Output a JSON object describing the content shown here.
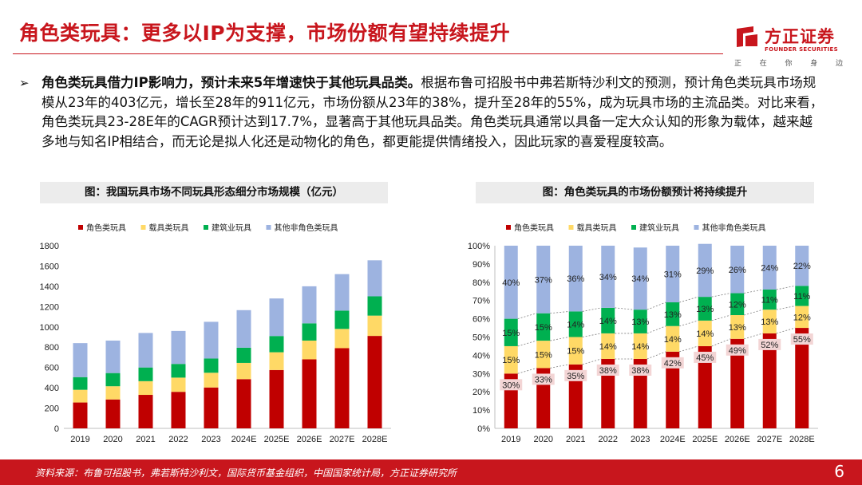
{
  "title": "角色类玩具：更多以IP为支撑，市场份额有望持续提升",
  "logo": {
    "name_cn": "方正证券",
    "name_en": "FOUNDER SECURITIES",
    "slogan": [
      "正",
      "在",
      "你",
      "身",
      "边"
    ]
  },
  "body": {
    "lead": "角色类玩具借力IP影响力，预计未来5年增速快于其他玩具品类。",
    "text": "根据布鲁可招股书中弗若斯特沙利文的预测，预计角色类玩具市场规模从23年的403亿元，增长至28年的911亿元，市场份额从23年的38%，提升至28年的55%，成为玩具市场的主流品类。对比来看，角色类玩具23-28E年的CAGR预计达到17.7%，显著高于其他玩具品类。角色类玩具通常以具备一定大众认知的形象为载体，越来越多地与知名IP相结合，而无论是拟人化还是动物化的角色，都更能提供情绪投入，因此玩家的喜爱程度较高。"
  },
  "colors": {
    "brand_red": "#c8161d",
    "series": [
      "#c00000",
      "#ffd966",
      "#00b050",
      "#9db3e0"
    ]
  },
  "chart_data": [
    {
      "type": "bar",
      "stacked": true,
      "title": "图：我国玩具市场不同玩具形态细分市场规模（亿元）",
      "categories": [
        "2019",
        "2020",
        "2021",
        "2022",
        "2023",
        "2024E",
        "2025E",
        "2026E",
        "2027E",
        "2028E"
      ],
      "series": [
        {
          "name": "角色类玩具",
          "values": [
            255,
            285,
            330,
            360,
            403,
            485,
            575,
            680,
            790,
            911
          ]
        },
        {
          "name": "载具类玩具",
          "values": [
            125,
            130,
            135,
            140,
            145,
            160,
            175,
            185,
            190,
            200
          ]
        },
        {
          "name": "建筑业玩具",
          "values": [
            125,
            130,
            135,
            135,
            140,
            150,
            160,
            170,
            180,
            190
          ]
        },
        {
          "name": "其他非角色类玩具",
          "values": [
            335,
            320,
            340,
            325,
            362,
            370,
            370,
            365,
            360,
            355
          ]
        }
      ],
      "ylim": [
        0,
        1800
      ],
      "yticks": [
        0,
        200,
        400,
        600,
        800,
        1000,
        1200,
        1400,
        1600,
        1800
      ],
      "legend": "top"
    },
    {
      "type": "bar",
      "stacked": true,
      "title": "图：角色类玩具的市场份额预计将持续提升",
      "categories": [
        "2019",
        "2020",
        "2021",
        "2022",
        "2023",
        "2024E",
        "2025E",
        "2026E",
        "2027E",
        "2028E"
      ],
      "series": [
        {
          "name": "角色类玩具",
          "values": [
            30,
            33,
            35,
            38,
            38,
            42,
            45,
            49,
            52,
            55
          ]
        },
        {
          "name": "载具类玩具",
          "values": [
            15,
            15,
            15,
            14,
            14,
            14,
            14,
            13,
            13,
            12
          ]
        },
        {
          "name": "建筑业玩具",
          "values": [
            15,
            15,
            14,
            14,
            13,
            13,
            13,
            12,
            11,
            11
          ]
        },
        {
          "name": "其他非角色类玩具",
          "values": [
            40,
            37,
            36,
            34,
            34,
            31,
            29,
            26,
            24,
            22
          ]
        }
      ],
      "ylim": [
        0,
        100
      ],
      "yticks": [
        "0%",
        "10%",
        "20%",
        "30%",
        "40%",
        "50%",
        "60%",
        "70%",
        "80%",
        "90%",
        "100%"
      ],
      "legend": "top"
    }
  ],
  "footer": {
    "source": "资料来源：布鲁可招股书，弗若斯特沙利文，国际货币基金组织，中国国家统计局，方正证券研究所",
    "page": "6"
  }
}
